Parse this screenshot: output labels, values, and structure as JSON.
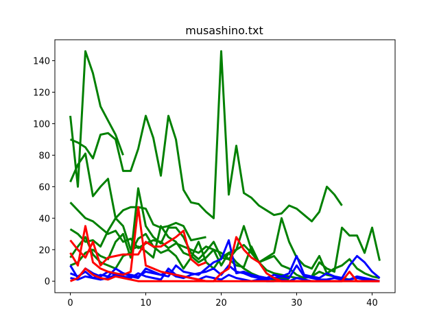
{
  "chart_data": {
    "type": "line",
    "title": "musashino.txt",
    "xlabel": "",
    "ylabel": "",
    "xlim": [
      -2.05,
      43.05
    ],
    "ylim": [
      -7.3,
      153.3
    ],
    "xticks": [
      0,
      10,
      20,
      30,
      40
    ],
    "yticks": [
      0,
      20,
      40,
      60,
      80,
      100,
      120,
      140
    ],
    "grid": false,
    "legend": "none",
    "colors": {
      "green": "#008000",
      "blue": "#0000ff",
      "red": "#ff0000"
    },
    "series": [
      {
        "color": "green",
        "values": [
          105,
          60,
          146,
          132,
          111,
          102,
          93,
          80
        ]
      },
      {
        "color": "green",
        "values": [
          90,
          88,
          85,
          78,
          93,
          94,
          90,
          70,
          70,
          84,
          105,
          91,
          67,
          105,
          90,
          58,
          50,
          49,
          44,
          40,
          146,
          55,
          86,
          56,
          53,
          48,
          45,
          42,
          43,
          48,
          46,
          42,
          38,
          44,
          60,
          55,
          48
        ]
      },
      {
        "color": "green",
        "values": [
          63,
          74,
          81,
          54,
          60,
          65,
          40,
          45,
          47,
          47,
          46,
          36,
          34,
          35,
          37,
          35,
          26,
          27,
          28
        ]
      },
      {
        "color": "green",
        "values": [
          33,
          30,
          25,
          26,
          22,
          32,
          40,
          35,
          20,
          22,
          19,
          15,
          35,
          28,
          25,
          18,
          16,
          12,
          15,
          20,
          10,
          18,
          20,
          35,
          20,
          12,
          15,
          18,
          40,
          25,
          15,
          10,
          8,
          16,
          5,
          8,
          10,
          14,
          8,
          5,
          3,
          2
        ]
      },
      {
        "color": "green",
        "values": [
          50,
          45,
          40,
          38,
          34,
          30,
          32,
          25,
          27,
          21,
          24,
          26,
          25,
          21,
          24,
          22,
          20,
          18,
          22,
          20,
          18,
          14,
          20,
          23,
          18,
          12,
          14,
          16,
          10,
          8,
          4,
          2,
          3,
          12,
          8,
          6,
          34,
          29,
          29,
          18,
          34,
          13
        ]
      },
      {
        "color": "green",
        "values": [
          10,
          12,
          18,
          20,
          16,
          14,
          25,
          30,
          15,
          59,
          35,
          28,
          24,
          34,
          34,
          28,
          18,
          14,
          19,
          25,
          15,
          14,
          10,
          9,
          22,
          12,
          7,
          5,
          4,
          3,
          2,
          2,
          3,
          6,
          4,
          3,
          2,
          1
        ]
      },
      {
        "color": "green",
        "values": [
          15,
          22,
          28,
          17,
          12,
          10,
          8,
          16,
          18,
          27,
          30,
          22,
          18,
          20,
          16,
          8,
          15,
          25,
          12,
          8,
          15,
          18,
          12,
          8,
          5,
          3,
          2,
          1,
          2,
          1
        ]
      },
      {
        "color": "blue",
        "values": [
          10,
          2,
          8,
          5,
          3,
          6,
          4,
          5,
          3,
          2,
          8,
          6,
          4,
          3,
          10,
          6,
          5,
          4,
          8,
          12,
          14,
          26,
          5,
          6,
          4,
          3,
          2,
          4,
          3,
          5,
          16,
          4,
          3,
          2,
          5,
          3,
          2,
          10,
          16,
          12,
          6,
          2
        ]
      },
      {
        "color": "blue",
        "values": [
          5,
          3,
          6,
          2,
          4,
          3,
          8,
          5,
          4,
          3,
          6,
          5,
          4,
          6,
          3,
          2,
          4,
          5,
          6,
          8,
          4,
          10,
          6,
          5,
          3,
          2,
          1,
          2,
          3,
          2,
          10,
          3,
          2,
          1,
          1,
          2,
          1,
          1,
          2,
          1,
          0,
          0
        ]
      },
      {
        "color": "blue",
        "values": [
          2,
          1,
          3,
          2,
          1,
          2,
          4,
          3,
          2,
          5,
          3,
          2,
          1,
          8,
          4,
          3,
          2,
          1,
          3,
          2,
          1,
          4,
          2,
          1,
          0,
          1,
          0,
          0,
          1,
          0,
          2,
          1,
          0,
          0,
          0,
          0,
          0,
          1,
          3,
          2,
          1,
          0
        ]
      },
      {
        "color": "red",
        "values": [
          26,
          20,
          15,
          25,
          10,
          15,
          16,
          17,
          17,
          17,
          25,
          22,
          22,
          25,
          28,
          32,
          14,
          10,
          12
        ]
      },
      {
        "color": "red",
        "values": [
          18,
          10,
          35,
          12,
          8,
          6,
          5,
          4,
          6,
          47,
          10,
          8,
          6,
          5,
          4,
          3,
          2,
          1,
          0,
          0,
          0,
          0,
          0,
          0,
          0,
          0,
          0,
          0,
          0,
          0,
          0,
          0,
          0,
          0,
          0,
          0,
          0,
          0,
          0,
          0,
          0,
          0
        ]
      },
      {
        "color": "red",
        "values": [
          0,
          2,
          8,
          4,
          2,
          1,
          3,
          2,
          1,
          0,
          0,
          0,
          0,
          0,
          0,
          0,
          0,
          0,
          0,
          0,
          5,
          8,
          28,
          20,
          15,
          12,
          5,
          2,
          0,
          0,
          0,
          0,
          0,
          0,
          0,
          0,
          0,
          6,
          0,
          0,
          0,
          0
        ]
      }
    ]
  }
}
